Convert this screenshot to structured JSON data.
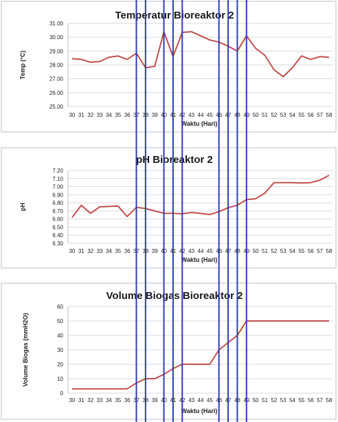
{
  "chart_data": [
    {
      "type": "line",
      "title": "Temperatur Bioreaktor 2",
      "xlabel": "Waktu (Hari)",
      "ylabel": "Temp (°C)",
      "ylim": [
        25.0,
        31.0
      ],
      "yticks": [
        "25.00",
        "26.00",
        "27.00",
        "28.00",
        "29.00",
        "30.00",
        "31.00"
      ],
      "grid": "horizontal",
      "series": [
        {
          "color": "#c0504d",
          "x": [
            30,
            31,
            32,
            33,
            34,
            35,
            36,
            37,
            38,
            39,
            40,
            41,
            42,
            43,
            44,
            45,
            46,
            47,
            48,
            49,
            50,
            51,
            52,
            53,
            54,
            55,
            56,
            57,
            58
          ],
          "values": [
            28.45,
            28.4,
            28.2,
            28.25,
            28.55,
            28.65,
            28.4,
            28.85,
            27.8,
            27.9,
            30.4,
            28.6,
            30.35,
            30.4,
            30.1,
            29.8,
            29.65,
            29.35,
            29.0,
            30.1,
            29.2,
            28.7,
            27.65,
            27.15,
            27.8,
            28.65,
            28.4,
            28.6,
            28.55
          ]
        }
      ]
    },
    {
      "type": "line",
      "title": "pH Bioreaktor 2",
      "xlabel": "Waktu (Hari)",
      "ylabel": "pH",
      "ylim": [
        6.3,
        7.2
      ],
      "yticks": [
        "6.30",
        "6.40",
        "6.50",
        "6.60",
        "6.70",
        "6.80",
        "6.90",
        "7.00",
        "7.10",
        "7.20"
      ],
      "grid": "horizontal",
      "series": [
        {
          "color": "#c0504d",
          "x": [
            30,
            31,
            32,
            33,
            34,
            35,
            36,
            37,
            38,
            39,
            40,
            41,
            42,
            43,
            44,
            45,
            46,
            47,
            48,
            49,
            50,
            51,
            52,
            53,
            54,
            55,
            56,
            57,
            58
          ],
          "values": [
            6.62,
            6.77,
            6.67,
            6.75,
            6.755,
            6.76,
            6.63,
            6.745,
            6.73,
            6.7,
            6.67,
            6.67,
            6.665,
            6.68,
            6.67,
            6.655,
            6.69,
            6.74,
            6.77,
            6.84,
            6.85,
            6.92,
            7.05,
            7.05,
            7.05,
            7.045,
            7.05,
            7.08,
            7.14
          ]
        }
      ]
    },
    {
      "type": "line",
      "title": "Volume Biogas  Bioreaktor 2",
      "xlabel": "Waktu (Hari)",
      "ylabel": "Volume Biogas (mmH2O)",
      "ylim": [
        0,
        60
      ],
      "yticks": [
        "0",
        "10",
        "20",
        "30",
        "40",
        "50",
        "60"
      ],
      "grid": "horizontal",
      "series": [
        {
          "color": "#c0504d",
          "x": [
            30,
            31,
            32,
            33,
            34,
            35,
            36,
            37,
            38,
            39,
            40,
            41,
            42,
            43,
            44,
            45,
            46,
            47,
            48,
            49,
            50,
            51,
            52,
            53,
            54,
            55,
            56,
            57,
            58
          ],
          "values": [
            3,
            3,
            3,
            3,
            3,
            3,
            3,
            7,
            10,
            10,
            13,
            17,
            20,
            20,
            20,
            20,
            30,
            35,
            40,
            50,
            50,
            50,
            50,
            50,
            50,
            50,
            50,
            50,
            50
          ]
        }
      ]
    }
  ],
  "markers": {
    "color": "#2e3cb3",
    "x": [
      37,
      38,
      40,
      41,
      42,
      46,
      47,
      48,
      49
    ]
  },
  "x_categories": [
    "30",
    "31",
    "32",
    "33",
    "34",
    "35",
    "36",
    "37",
    "38",
    "39",
    "40",
    "41",
    "42",
    "43",
    "44",
    "45",
    "46",
    "47",
    "48",
    "49",
    "50",
    "51",
    "52",
    "53",
    "54",
    "55",
    "56",
    "57",
    "58"
  ],
  "colors": {
    "grid": "#d9d9d9",
    "axis": "#bfbfbf",
    "frame": "#bfbfbf"
  }
}
